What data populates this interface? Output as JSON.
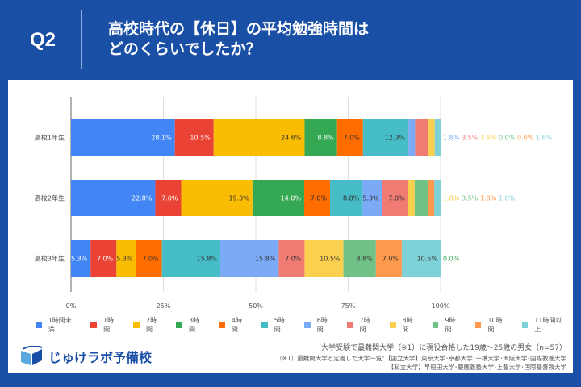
{
  "header": {
    "question": "Q2",
    "title_line1": "高校時代の【休日】の平均勉強時間は",
    "title_line2": "どのくらいでしたか？"
  },
  "chart_data": {
    "type": "bar",
    "orientation": "horizontal",
    "stacked": true,
    "percent": true,
    "categories": [
      "高校1年生",
      "高校2年生",
      "高校3年生"
    ],
    "xticks": [
      "0%",
      "25%",
      "50%",
      "75%",
      "100%"
    ],
    "xlim": [
      0,
      100
    ],
    "grid": true,
    "legend_position": "bottom",
    "series": [
      {
        "name": "1時間未満",
        "color": "#4285f4",
        "values": [
          28.1,
          22.8,
          5.3
        ]
      },
      {
        "name": "1時間",
        "color": "#ea4335",
        "values": [
          10.5,
          7.0,
          7.0
        ]
      },
      {
        "name": "2時間",
        "color": "#fbbc04",
        "values": [
          24.6,
          19.3,
          5.3
        ]
      },
      {
        "name": "3時間",
        "color": "#34a853",
        "values": [
          8.8,
          14.0,
          0.0
        ]
      },
      {
        "name": "4時間",
        "color": "#ff6d01",
        "values": [
          7.0,
          7.0,
          7.0
        ]
      },
      {
        "name": "5時間",
        "color": "#46bdc6",
        "values": [
          12.3,
          8.8,
          15.8
        ]
      },
      {
        "name": "6時間",
        "color": "#7baaf7",
        "values": [
          1.8,
          5.3,
          15.8
        ]
      },
      {
        "name": "7時間",
        "color": "#f07b72",
        "values": [
          3.5,
          7.0,
          7.0
        ]
      },
      {
        "name": "8時間",
        "color": "#fcd04f",
        "values": [
          1.8,
          1.8,
          10.5
        ]
      },
      {
        "name": "9時間",
        "color": "#71c287",
        "values": [
          0.0,
          3.5,
          8.8
        ]
      },
      {
        "name": "10時間",
        "color": "#ff994d",
        "values": [
          0.0,
          1.8,
          7.0
        ]
      },
      {
        "name": "11時間以上",
        "color": "#7ed1d7",
        "values": [
          1.8,
          1.8,
          10.5
        ]
      }
    ]
  },
  "footer": {
    "logo": "じゅけラボ予備校",
    "note1": "大学受験で最難関大学（※1）に現役合格した19歳～25歳の男女（n=57）",
    "note2": "（※1）最難関大学と定義した大学一覧：【国立大学】東京大学･京都大学･一橋大学･大阪大学･国際教養大学",
    "note3": "【私立大学】早稲田大学･慶應義塾大学･上智大学･国際基督教大学"
  }
}
